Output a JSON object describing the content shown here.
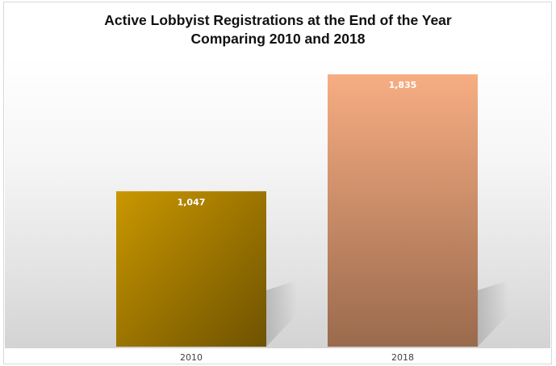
{
  "chart_data": {
    "type": "bar",
    "title": "Active Lobbyist Registrations at the End of the Year",
    "subtitle": "Comparing 2010 and 2018",
    "categories": [
      "2010",
      "2018"
    ],
    "values": [
      1047,
      1835
    ],
    "data_labels": [
      "1,047",
      "1,835"
    ],
    "ylim": [
      0,
      2200
    ],
    "grid": false,
    "legend": "none",
    "colors": {
      "bar_2010_top": "#c99700",
      "bar_2010_bottom": "#6e5200",
      "bar_2018_top": "#f7ad82",
      "bar_2018_bottom": "#9a6a4d",
      "shadow": "#a8a8a8"
    }
  }
}
